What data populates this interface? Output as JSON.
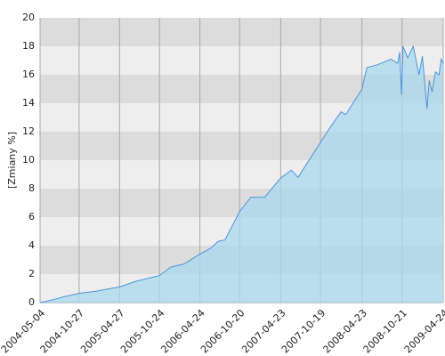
{
  "chart_data": {
    "type": "area",
    "y_label": "[Zmiany %]",
    "x": [
      "2004-05-04",
      "2004-07-01",
      "2004-08-15",
      "2004-10-27",
      "2005-01-10",
      "2005-04-27",
      "2005-07-10",
      "2005-10-24",
      "2005-12-15",
      "2006-02-10",
      "2006-04-24",
      "2006-06-10",
      "2006-07-15",
      "2006-08-15",
      "2006-10-20",
      "2006-12-10",
      "2007-02-10",
      "2007-04-23",
      "2007-06-10",
      "2007-07-10",
      "2007-10-19",
      "2007-12-10",
      "2008-01-20",
      "2008-02-10",
      "2008-04-23",
      "2008-05-15",
      "2008-07-01",
      "2008-09-01",
      "2008-10-01",
      "2008-10-10",
      "2008-10-18",
      "2008-10-25",
      "2008-11-15",
      "2008-12-10",
      "2009-01-05",
      "2009-01-20",
      "2009-02-10",
      "2009-02-20",
      "2009-03-05",
      "2009-03-20",
      "2009-04-05",
      "2009-04-15",
      "2009-04-24"
    ],
    "values": [
      0,
      0.2,
      0.4,
      0.65,
      0.8,
      1.1,
      1.5,
      1.9,
      2.5,
      2.7,
      3.4,
      3.8,
      4.3,
      4.4,
      6.4,
      7.4,
      7.4,
      8.75,
      9.3,
      8.8,
      11.25,
      12.5,
      13.4,
      13.2,
      15.0,
      16.5,
      16.7,
      17.1,
      16.8,
      17.6,
      14.6,
      18.0,
      17.2,
      18.0,
      16.0,
      17.3,
      13.6,
      15.6,
      14.8,
      16.2,
      16.0,
      17.1,
      16.8
    ],
    "color": "#4a94dc",
    "fill": "#a9d8ee",
    "xlim": [
      "2004-05-04",
      "2009-04-24"
    ],
    "xticks": [
      "2004-05-04",
      "2004-10-27",
      "2005-04-27",
      "2005-10-24",
      "2006-04-24",
      "2006-10-20",
      "2007-04-23",
      "2007-10-19",
      "2008-04-23",
      "2008-10-21",
      "2009-04-24"
    ],
    "ylim": [
      0,
      20
    ],
    "yticks": [
      0,
      2,
      4,
      6,
      8,
      10,
      12,
      14,
      16,
      18,
      20
    ],
    "grid": true
  }
}
